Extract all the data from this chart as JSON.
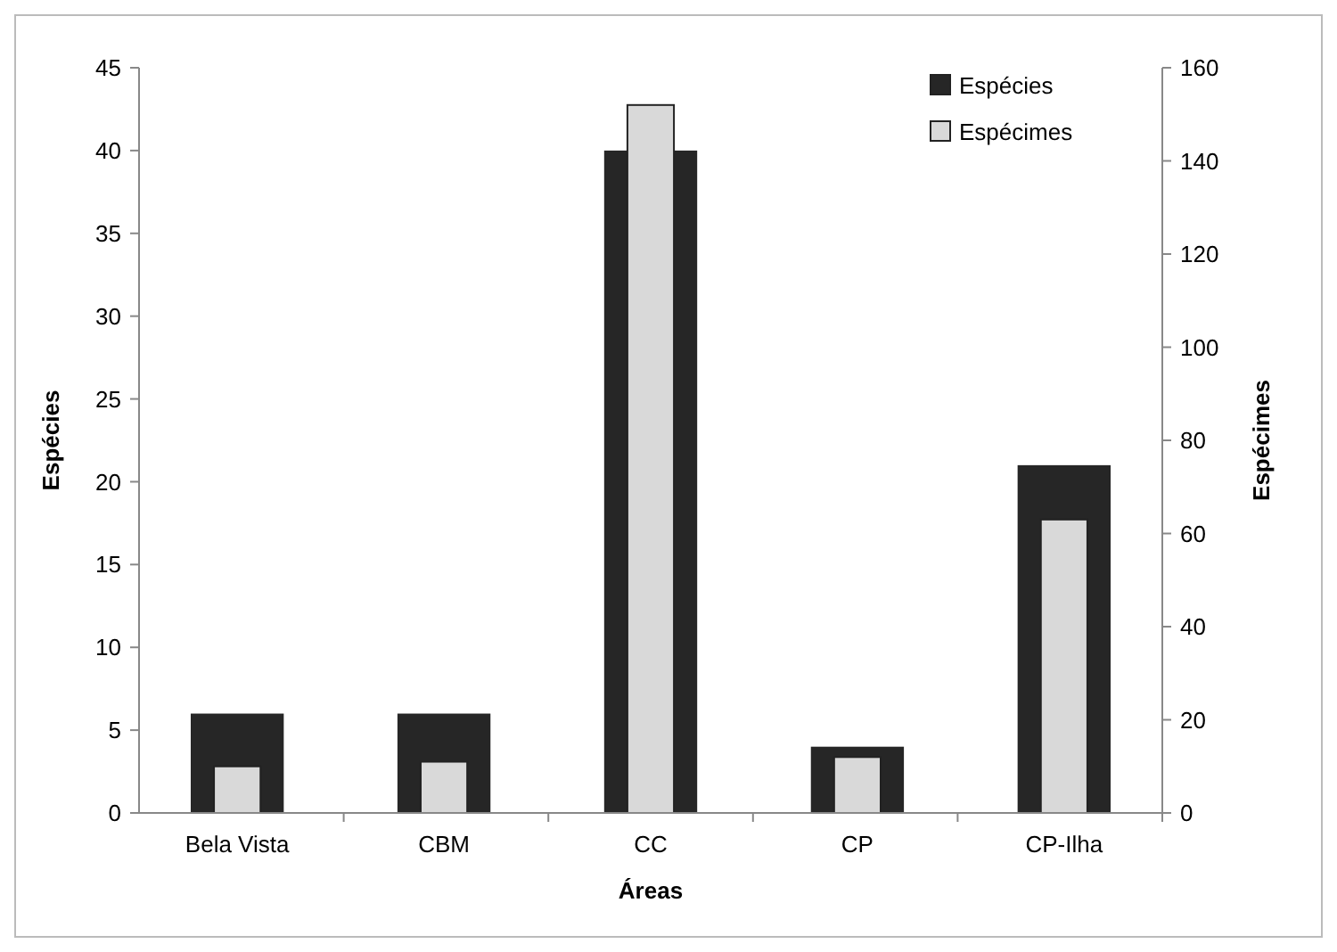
{
  "chart_data": {
    "type": "bar",
    "xlabel": "Áreas",
    "ylabel": "Espécies",
    "y2label": "Espécimes",
    "categories": [
      "Bela Vista",
      "CBM",
      "CC",
      "CP",
      "CP-Ilha"
    ],
    "series": [
      {
        "name": "Espécies",
        "color": "#262626",
        "values": [
          6,
          6,
          40,
          4,
          21
        ]
      },
      {
        "name": "Espécimes",
        "color": "#d9d9d9",
        "values": [
          10,
          11,
          152,
          12,
          63
        ],
        "axis": "y2"
      }
    ],
    "ylim": [
      0,
      45
    ],
    "yticks": [
      0,
      5,
      10,
      15,
      20,
      25,
      30,
      35,
      40,
      45
    ],
    "y2lim": [
      0,
      160
    ],
    "y2ticks": [
      0,
      20,
      40,
      60,
      80,
      100,
      120,
      140,
      160
    ],
    "legend": "top right",
    "grid": false
  }
}
